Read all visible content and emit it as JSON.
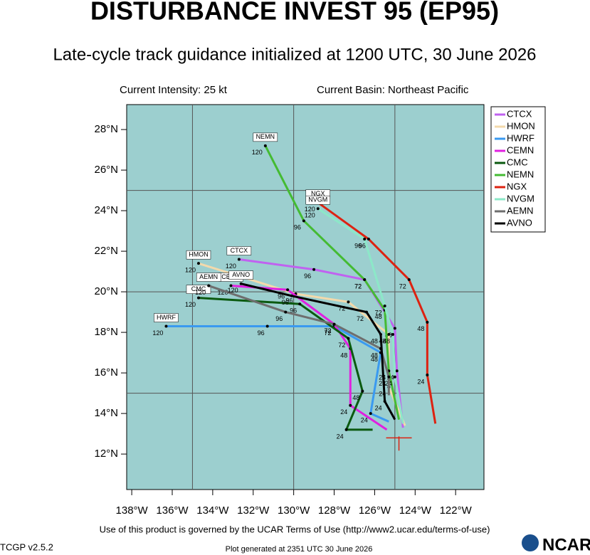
{
  "chart_data": {
    "type": "line",
    "title": "DISTURBANCE INVEST 95 (EP95)",
    "subtitle": "Late-cycle track guidance initialized at 1200 UTC, 30 June 2026",
    "intensity": "Current Intensity: 25 kt",
    "basin": "Current Basin: Northeast Pacific",
    "terms": "Use of this product is governed by the UCAR Terms of Use (http://www2.ucar.edu/terms-of-use)",
    "version": "TCGP v2.5.2",
    "generated": "Plot generated at 2351 UTC  30 June 2026",
    "logo": "NCAR",
    "xlim": [
      -138.25,
      -120.6
    ],
    "ylim": [
      10.25,
      29.23
    ],
    "xticks": [
      {
        "value": -138,
        "label": "138°W"
      },
      {
        "value": -136,
        "label": "136°W"
      },
      {
        "value": -134,
        "label": "134°W"
      },
      {
        "value": -132,
        "label": "132°W"
      },
      {
        "value": -130,
        "label": "130°W"
      },
      {
        "value": -128,
        "label": "128°W"
      },
      {
        "value": -126,
        "label": "126°W"
      },
      {
        "value": -124,
        "label": "124°W"
      },
      {
        "value": -122,
        "label": "122°W"
      }
    ],
    "yticks": [
      {
        "value": 12,
        "label": "12°N"
      },
      {
        "value": 14,
        "label": "14°N"
      },
      {
        "value": 16,
        "label": "16°N"
      },
      {
        "value": 18,
        "label": "18°N"
      },
      {
        "value": 20,
        "label": "20°N"
      },
      {
        "value": 22,
        "label": "22°N"
      },
      {
        "value": 24,
        "label": "24°N"
      },
      {
        "value": 26,
        "label": "26°N"
      },
      {
        "value": 28,
        "label": "28°N"
      }
    ],
    "xgrid": [
      -135,
      -130,
      -125
    ],
    "ygrid": [
      15,
      20,
      25
    ],
    "current_position": {
      "x": -124.8,
      "y": 12.8
    },
    "hours": [
      0,
      24,
      48,
      72,
      96,
      120
    ],
    "legend": "upper right",
    "series": [
      {
        "name": "CTCX",
        "color": "#c062f0",
        "x": [
          -124.6,
          -124.9,
          -125.0,
          -126.5,
          -129.0,
          -132.7
        ],
        "y": [
          13.3,
          16.1,
          18.2,
          20.6,
          21.1,
          21.6
        ]
      },
      {
        "name": "HMON",
        "color": "#f3d9ab",
        "x": [
          -124.5,
          -125.3,
          -125.3,
          -127.3,
          -129.9,
          -134.7
        ],
        "y": [
          13.4,
          15.3,
          17.9,
          19.5,
          19.9,
          21.4
        ]
      },
      {
        "name": "HWRF",
        "color": "#3a9af0",
        "x": [
          -125.3,
          -126.2,
          -125.7,
          -128.0,
          -131.3,
          -136.3
        ],
        "y": [
          13.6,
          14.0,
          17.0,
          18.3,
          18.3,
          18.3
        ]
      },
      {
        "name": "CEMN",
        "color": "#e020e0",
        "x": [
          -125.4,
          -127.2,
          -127.2,
          -128.0,
          -130.3,
          -133.1
        ],
        "y": [
          13.2,
          14.4,
          17.2,
          18.4,
          20.1,
          20.3
        ]
      },
      {
        "name": "CMC",
        "color": "#0b5a10",
        "x": [
          -126.1,
          -127.4,
          -126.6,
          -127.3,
          -129.7,
          -134.7
        ],
        "y": [
          13.2,
          13.2,
          15.1,
          17.7,
          19.4,
          19.7
        ]
      },
      {
        "name": "NEMN",
        "color": "#44bb33",
        "x": [
          -124.8,
          -125.3,
          -125.5,
          -126.5,
          -129.5,
          -131.4
        ],
        "y": [
          13.7,
          16.1,
          19.1,
          20.6,
          23.5,
          27.2
        ]
      },
      {
        "name": "NGX",
        "color": "#dd2211",
        "x": [
          -123.0,
          -123.4,
          -123.4,
          -124.3,
          -126.3,
          -128.8
        ],
        "y": [
          13.5,
          15.9,
          18.5,
          20.6,
          22.6,
          24.4
        ]
      },
      {
        "name": "NVGM",
        "color": "#8ce8c8",
        "x": [
          -124.6,
          -125.0,
          -125.1,
          -125.5,
          -126.5,
          -128.8
        ],
        "y": [
          13.5,
          15.8,
          17.9,
          19.3,
          22.6,
          24.1
        ]
      },
      {
        "name": "AEMN",
        "color": "#6e6e6e",
        "x": [
          -125.3,
          -125.3,
          -125.7,
          -128.0,
          -130.4,
          -134.2
        ],
        "y": [
          14.9,
          15.8,
          17.2,
          18.4,
          19.0,
          20.3
        ]
      },
      {
        "name": "AVNO",
        "color": "#000000",
        "x": [
          -125.0,
          -125.5,
          -125.7,
          -126.4,
          -130.1,
          -132.6
        ],
        "y": [
          13.7,
          14.6,
          17.9,
          19.0,
          19.8,
          20.4
        ]
      }
    ]
  }
}
